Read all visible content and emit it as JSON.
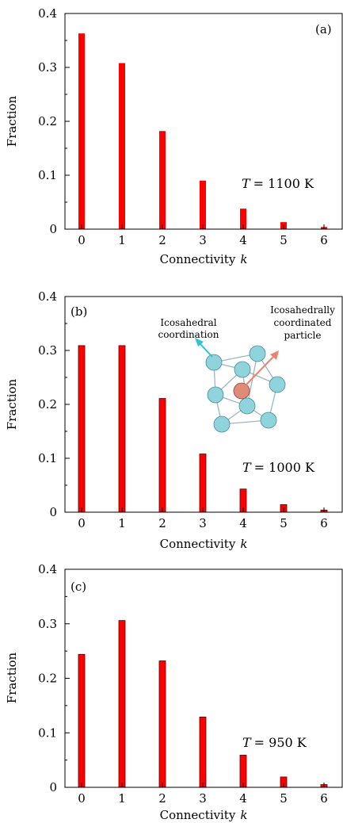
{
  "chart_data": [
    {
      "type": "bar",
      "panel": "(a)",
      "temperature_label": "T = 1100 K",
      "temperature_symbol": "T",
      "temperature_value": "= 1100 K",
      "categories": [
        "0",
        "1",
        "2",
        "3",
        "4",
        "5",
        "6"
      ],
      "values": [
        0.363,
        0.308,
        0.182,
        0.09,
        0.038,
        0.013,
        0.004
      ],
      "xlabel": "Connectivity k",
      "xlabel_text": "Connectivity",
      "xlabel_var": "k",
      "ylabel": "Fraction",
      "ylim": [
        0,
        0.4
      ],
      "yticks": [
        "0",
        "0.1",
        "0.2",
        "0.3",
        "0.4"
      ],
      "bar_color": "#ff0000"
    },
    {
      "type": "bar",
      "panel": "(b)",
      "temperature_label": "T = 1000 K",
      "temperature_symbol": "T",
      "temperature_value": "= 1000 K",
      "categories": [
        "0",
        "1",
        "2",
        "3",
        "4",
        "5",
        "6"
      ],
      "values": [
        0.309,
        0.309,
        0.211,
        0.108,
        0.043,
        0.014,
        0.004
      ],
      "xlabel": "Connectivity k",
      "xlabel_text": "Connectivity",
      "xlabel_var": "k",
      "ylabel": "Fraction",
      "ylim": [
        0,
        0.4
      ],
      "yticks": [
        "0",
        "0.1",
        "0.2",
        "0.3",
        "0.4"
      ],
      "bar_color": "#ff0000",
      "annotations": {
        "left_line1": "Icosahedral",
        "left_line2": "coordination",
        "right_line1": "Icosahedrally",
        "right_line2": "coordinated",
        "right_line3": "particle",
        "left_arrow_color": "#2ec4d4",
        "right_arrow_color": "#f08070",
        "sphere_color": "#8fd3dc",
        "center_sphere_color": "#e08a78"
      }
    },
    {
      "type": "bar",
      "panel": "(c)",
      "temperature_label": "T = 950 K",
      "temperature_symbol": "T",
      "temperature_value": "= 950 K",
      "categories": [
        "0",
        "1",
        "2",
        "3",
        "4",
        "5",
        "6"
      ],
      "values": [
        0.244,
        0.306,
        0.232,
        0.129,
        0.059,
        0.019,
        0.005
      ],
      "xlabel": "Connectivity k",
      "xlabel_text": "Connectivity",
      "xlabel_var": "k",
      "ylabel": "Fraction",
      "ylim": [
        0,
        0.4
      ],
      "yticks": [
        "0",
        "0.1",
        "0.2",
        "0.3",
        "0.4"
      ],
      "bar_color": "#ff0000"
    }
  ]
}
